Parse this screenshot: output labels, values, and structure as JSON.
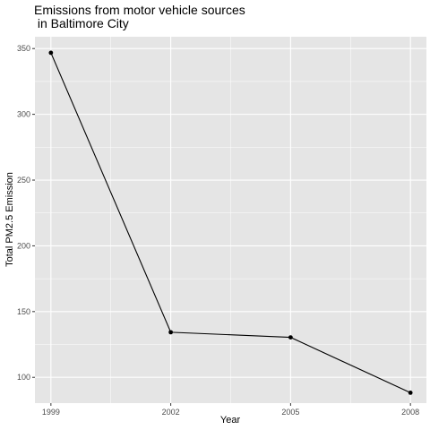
{
  "chart_data": {
    "type": "line",
    "title_lines": [
      "Emissions from motor vehicle sources",
      " in Baltimore City"
    ],
    "xlabel": "Year",
    "ylabel": "Total PM2.5 Emission",
    "x": [
      1999,
      2002,
      2005,
      2008
    ],
    "series": [
      {
        "values": [
          346.8,
          134.3,
          130.4,
          88.3
        ]
      }
    ],
    "xlim": [
      1998.6,
      2008.4
    ],
    "ylim": [
      80.4,
      359.0
    ],
    "x_ticks": [
      1999,
      2002,
      2005,
      2008
    ],
    "y_ticks": [
      100,
      150,
      200,
      250,
      300,
      350
    ],
    "grid": true,
    "panel_color": "#e5e5e5",
    "grid_color": "#ffffff",
    "line_color": "#000000"
  }
}
